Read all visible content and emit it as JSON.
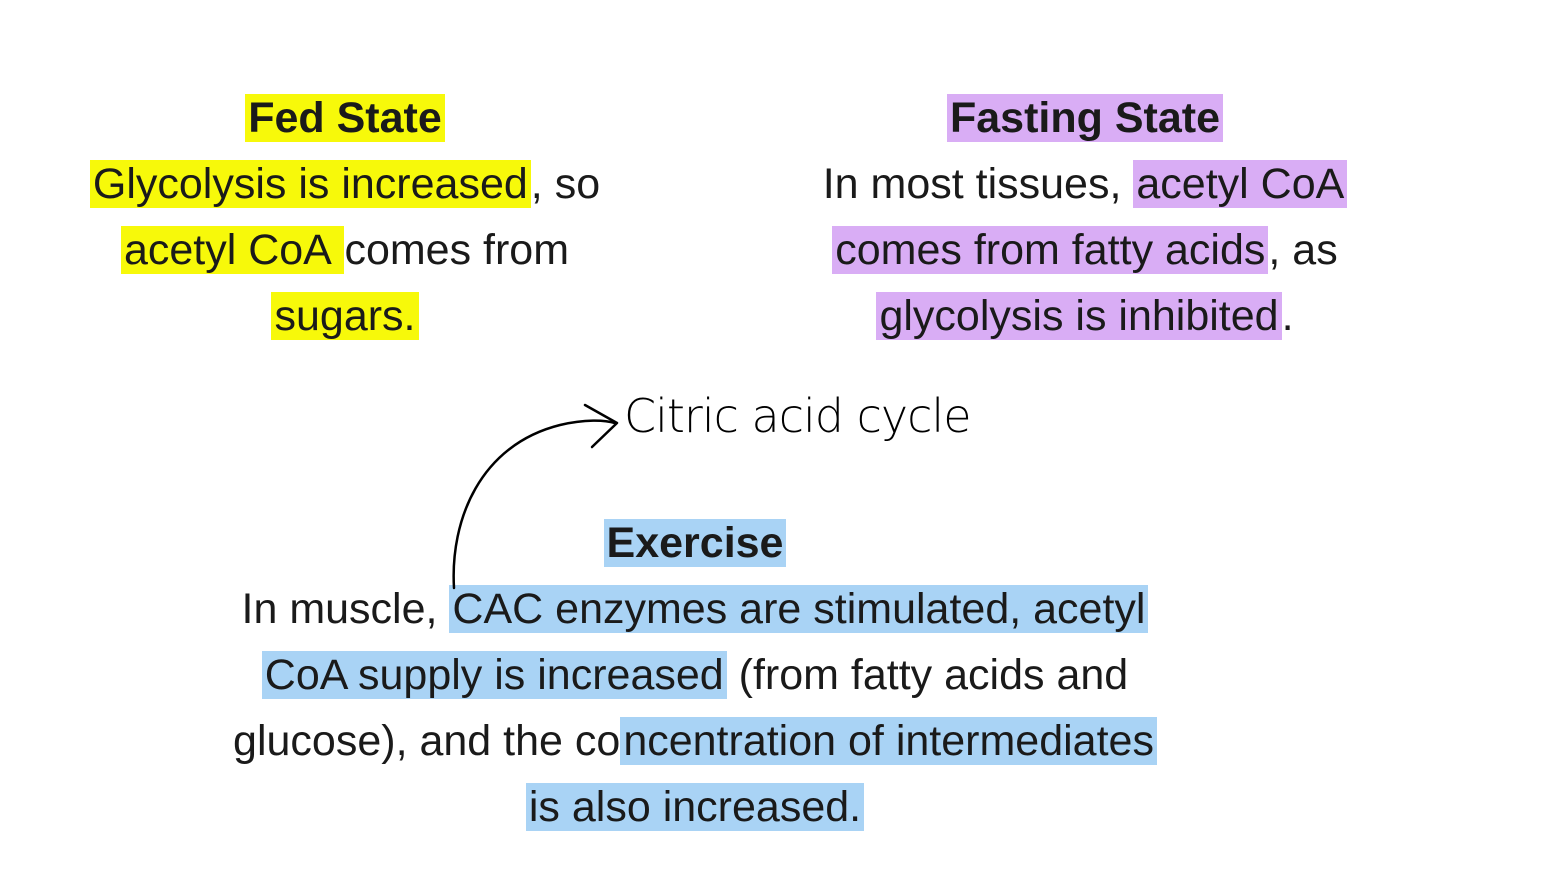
{
  "fed_state": {
    "heading": "Fed State",
    "line1_hl": "Glycolysis is increased",
    "line1_rest": ", so",
    "line2_hl": "acetyl CoA ",
    "line2_rest": "comes from",
    "line3_hl": "sugars."
  },
  "fasting_state": {
    "heading": "Fasting State",
    "line1_pre": "In most tissues, ",
    "line1_hl": "acetyl CoA",
    "line2_hl": " comes from fatty acids",
    "line2_rest": ", as",
    "line3_hl": "glycolysis is inhibited",
    "line3_rest": "."
  },
  "exercise": {
    "heading": "Exercise",
    "line1_pre": "In muscle, ",
    "line1_hl": "CAC enzymes are stimulated, acetyl",
    "line2_hl": "CoA supply is increased",
    "line2_rest": " (from fatty acids and",
    "line3_pre": "glucose), and the co",
    "line3_hl": "ncentration of intermediates",
    "line4_hl": "is also increased."
  },
  "annotation": {
    "text": "Citric acid cycle",
    "stroke_color": "#000000"
  },
  "colors": {
    "fed_highlight": "#f7f90a",
    "fasting_highlight": "#d9adf5",
    "exercise_highlight": "#a9d3f5"
  }
}
